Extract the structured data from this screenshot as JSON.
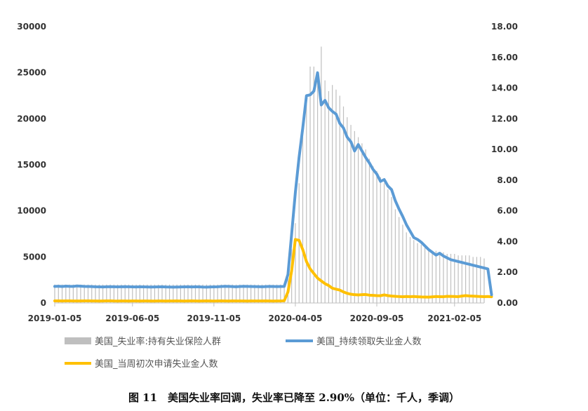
{
  "caption": "图 11　美国失业率回调，失业率已降至 2.90%（单位：千人，季调）",
  "chart_data": {
    "type": "bar+line",
    "x_tick_labels": [
      "2019-01-05",
      "2019-06-05",
      "2019-11-05",
      "2020-04-05",
      "2020-09-05",
      "2021-02-05"
    ],
    "x_tick_index": [
      0,
      21,
      43,
      65,
      87,
      108
    ],
    "y_left": {
      "range": [
        0,
        30000
      ],
      "ticks": [
        "0",
        "5000",
        "10000",
        "15000",
        "20000",
        "25000",
        "30000"
      ]
    },
    "y_right": {
      "range": [
        0,
        18
      ],
      "ticks": [
        "0.00",
        "2.00",
        "4.00",
        "6.00",
        "8.00",
        "10.00",
        "12.00",
        "14.00",
        "16.00",
        "18.00"
      ]
    },
    "grid": false,
    "legend_position": "bottom",
    "legend": [
      {
        "label": "美国_失业率:持有失业保险人群",
        "color": "#bfbfbf",
        "kind": "bar"
      },
      {
        "label": "美国_持续领取失业金人数",
        "color": "#5b9bd5",
        "kind": "line"
      },
      {
        "label": "美国_当周初次申请失业金人数",
        "color": "#ffc000",
        "kind": "line"
      }
    ],
    "series": [
      {
        "name": "美国_失业率:持有失业保险人群",
        "axis": "right",
        "color": "#bfbfbf",
        "values": [
          1.2,
          1.2,
          1.2,
          1.2,
          1.2,
          1.2,
          1.2,
          1.2,
          1.2,
          1.2,
          1.2,
          1.2,
          1.2,
          1.2,
          1.2,
          1.2,
          1.2,
          1.2,
          1.2,
          1.2,
          1.2,
          1.2,
          1.2,
          1.2,
          1.2,
          1.2,
          1.2,
          1.2,
          1.2,
          1.2,
          1.2,
          1.2,
          1.2,
          1.2,
          1.2,
          1.2,
          1.2,
          1.2,
          1.2,
          1.2,
          1.2,
          1.2,
          1.2,
          1.2,
          1.2,
          1.2,
          1.2,
          1.2,
          1.2,
          1.2,
          1.2,
          1.2,
          1.2,
          1.2,
          1.2,
          1.2,
          1.2,
          1.2,
          1.2,
          1.2,
          1.2,
          1.2,
          1.3,
          2.1,
          3.5,
          5.2,
          7.8,
          11.0,
          13.6,
          15.4,
          15.4,
          15.0,
          16.7,
          14.5,
          13.8,
          14.2,
          13.9,
          13.5,
          12.8,
          12.1,
          11.6,
          11.2,
          10.8,
          10.4,
          10.0,
          9.4,
          8.9,
          8.6,
          8.2,
          7.8,
          7.4,
          6.9,
          6.1,
          5.6,
          5.1,
          4.6,
          4.3,
          4.1,
          3.9,
          3.8,
          3.7,
          3.5,
          3.4,
          3.4,
          3.3,
          3.3,
          3.2,
          3.2,
          3.2,
          3.1,
          3.1,
          3.1,
          3.1,
          3.0,
          3.0,
          3.0,
          2.9
        ]
      },
      {
        "name": "美国_持续领取失业金人数",
        "axis": "left",
        "color": "#5b9bd5",
        "values": [
          1800,
          1820,
          1790,
          1830,
          1810,
          1800,
          1850,
          1830,
          1800,
          1790,
          1780,
          1760,
          1750,
          1740,
          1760,
          1770,
          1760,
          1750,
          1760,
          1770,
          1760,
          1750,
          1740,
          1760,
          1750,
          1740,
          1730,
          1740,
          1750,
          1760,
          1740,
          1730,
          1720,
          1730,
          1740,
          1750,
          1760,
          1740,
          1760,
          1750,
          1730,
          1720,
          1740,
          1750,
          1760,
          1790,
          1810,
          1800,
          1780,
          1760,
          1790,
          1810,
          1800,
          1790,
          1780,
          1770,
          1760,
          1780,
          1800,
          1790,
          1780,
          1790,
          1800,
          3100,
          7500,
          12000,
          15800,
          19000,
          22500,
          22600,
          23000,
          25000,
          21500,
          22000,
          21200,
          20800,
          20500,
          19500,
          19000,
          18000,
          17500,
          16500,
          17200,
          16500,
          15800,
          15200,
          14500,
          14000,
          13200,
          13400,
          12700,
          12300,
          11100,
          10200,
          9400,
          8500,
          7800,
          7100,
          6900,
          6600,
          6200,
          5800,
          5500,
          5200,
          5400,
          5100,
          4900,
          4700,
          4600,
          4500,
          4400,
          4300,
          4200,
          4100,
          4000,
          3900,
          3800,
          3700,
          900
        ]
      },
      {
        "name": "美国_当周初次申请失业金人数",
        "axis": "left",
        "color": "#ffc000",
        "values": [
          230,
          230,
          220,
          230,
          225,
          220,
          215,
          220,
          225,
          230,
          220,
          215,
          210,
          220,
          225,
          230,
          215,
          210,
          220,
          215,
          210,
          220,
          215,
          210,
          220,
          215,
          210,
          205,
          215,
          220,
          210,
          215,
          220,
          225,
          215,
          210,
          220,
          225,
          215,
          210,
          220,
          225,
          215,
          210,
          220,
          225,
          215,
          210,
          225,
          220,
          215,
          220,
          210,
          215,
          220,
          215,
          220,
          225,
          215,
          210,
          220,
          215,
          250,
          1200,
          3500,
          6900,
          6800,
          5800,
          4500,
          3700,
          3200,
          2700,
          2400,
          2100,
          1900,
          1600,
          1500,
          1400,
          1200,
          1050,
          950,
          900,
          880,
          900,
          920,
          850,
          830,
          800,
          790,
          880,
          800,
          750,
          720,
          700,
          680,
          700,
          690,
          700,
          680,
          660,
          650,
          640,
          670,
          700,
          690,
          680,
          720,
          710,
          700,
          690,
          750,
          800,
          760,
          740,
          720,
          700,
          690,
          700,
          680
        ]
      }
    ]
  }
}
